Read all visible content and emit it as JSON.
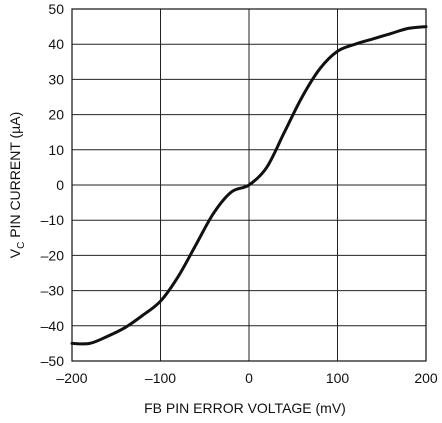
{
  "chart_data": {
    "type": "line",
    "title": "",
    "xlabel": "FB PIN ERROR VOLTAGE (mV)",
    "ylabel": {
      "prefix": "V",
      "subscript": "C",
      "suffix": " PIN CURRENT (µA)"
    },
    "xlim": [
      -200,
      200
    ],
    "ylim": [
      -50,
      50
    ],
    "x_ticks": [
      -200,
      -100,
      0,
      100,
      200
    ],
    "y_ticks": [
      -50,
      -40,
      -30,
      -20,
      -10,
      0,
      10,
      20,
      30,
      40,
      50
    ],
    "x_tick_labels": [
      "–200",
      "–100",
      "0",
      "100",
      "200"
    ],
    "y_tick_labels": [
      "–50",
      "–40",
      "–30",
      "–20",
      "–10",
      "0",
      "10",
      "20",
      "30",
      "40",
      "50"
    ],
    "grid": true,
    "line_color": "#111111",
    "series": [
      {
        "x": [
          -200,
          -180,
          -160,
          -140,
          -120,
          -100,
          -80,
          -60,
          -40,
          -20,
          0,
          20,
          40,
          60,
          80,
          100,
          120,
          140,
          160,
          180,
          200
        ],
        "y": [
          -45,
          -45,
          -43,
          -40.5,
          -37,
          -33,
          -26,
          -17,
          -8,
          -2,
          0,
          5,
          15,
          25,
          33,
          38,
          40,
          41.5,
          43,
          44.5,
          45
        ]
      }
    ]
  }
}
